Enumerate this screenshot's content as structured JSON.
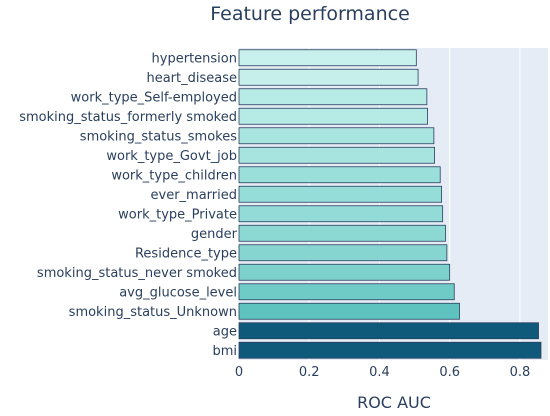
{
  "chart_data": {
    "type": "bar",
    "orientation": "horizontal",
    "title": "Feature performance",
    "xlabel": "ROC AUC",
    "ylabel": "",
    "xlim": [
      0,
      0.88
    ],
    "xticks": [
      0,
      0.2,
      0.4,
      0.6,
      0.8
    ],
    "xtick_labels": [
      "0",
      "0.2",
      "0.4",
      "0.6",
      "0.8"
    ],
    "grid": true,
    "categories": [
      "hypertension",
      "heart_disease",
      "work_type_Self-employed",
      "smoking_status_formerly smoked",
      "smoking_status_smokes",
      "work_type_Govt_job",
      "work_type_children",
      "ever_married",
      "work_type_Private",
      "gender",
      "Residence_type",
      "smoking_status_never smoked",
      "avg_glucose_level",
      "smoking_status_Unknown",
      "age",
      "bmi"
    ],
    "values": [
      0.505,
      0.51,
      0.535,
      0.537,
      0.555,
      0.557,
      0.573,
      0.577,
      0.58,
      0.588,
      0.592,
      0.6,
      0.613,
      0.628,
      0.853,
      0.86
    ],
    "bar_colors": [
      "#c8f0ec",
      "#c6efeb",
      "#b7ebe6",
      "#b5eae5",
      "#a9e5e0",
      "#a7e4df",
      "#9adfda",
      "#95ddd8",
      "#92dbd6",
      "#8cd8d3",
      "#86d5d0",
      "#7dd1cc",
      "#6ecbc6",
      "#5ec2bf",
      "#0f5a7a",
      "#0f5a7a"
    ],
    "bar_outline_color": "#2a3f5f",
    "plot_background": "#e5ecf6",
    "gridline_color": "#ffffff"
  }
}
